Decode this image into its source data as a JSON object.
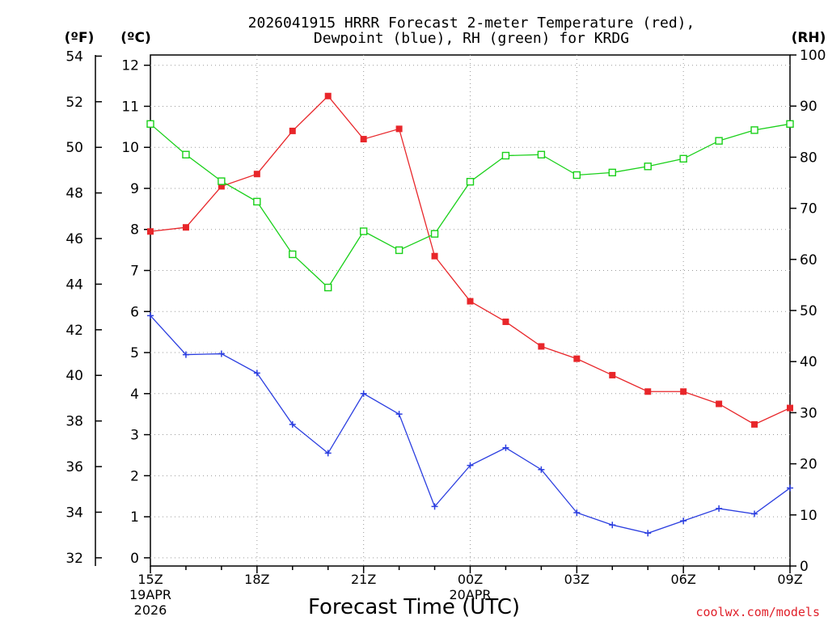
{
  "chart_data": {
    "type": "line",
    "title_line1": "2026041915 HRRR Forecast 2-meter Temperature (red),",
    "title_line2": "Dewpoint (blue), RH (green) for KRDG",
    "xlabel": "Forecast Time (UTC)",
    "left_outer_unit": "(ºF)",
    "left_inner_unit": "(ºC)",
    "right_unit": "(RH)",
    "watermark": "coolwx.com/models",
    "x_tick_labels": [
      "15Z",
      "18Z",
      "21Z",
      "00Z",
      "03Z",
      "06Z",
      "09Z"
    ],
    "x_date_labels": [
      {
        "day": "19APR",
        "year": "2026"
      },
      {
        "day": "20APR",
        "year": ""
      }
    ],
    "hours": [
      15,
      16,
      17,
      18,
      19,
      20,
      21,
      22,
      23,
      24,
      25,
      26,
      27,
      28,
      29,
      30,
      31,
      32,
      33
    ],
    "xlim": [
      15,
      33
    ],
    "celsius_ticks": [
      0,
      1,
      2,
      3,
      4,
      5,
      6,
      7,
      8,
      9,
      10,
      11,
      12
    ],
    "fahrenheit_ticks": [
      32,
      34,
      36,
      38,
      40,
      42,
      44,
      46,
      48,
      50,
      52,
      54
    ],
    "rh_ticks": [
      0,
      10,
      20,
      30,
      40,
      50,
      60,
      70,
      80,
      90,
      100
    ],
    "ylim_c": [
      -0.2,
      12.25
    ],
    "ylim_rh": [
      0,
      100
    ],
    "series": [
      {
        "name": "Temperature",
        "color": "#e8262a",
        "marker": "filled-square",
        "values": [
          7.95,
          8.05,
          9.05,
          9.35,
          10.4,
          11.25,
          10.2,
          10.45,
          7.35,
          6.25,
          5.75,
          5.15,
          4.85,
          4.45,
          4.05,
          4.05,
          3.75,
          3.25,
          3.65
        ]
      },
      {
        "name": "Dewpoint",
        "color": "#2b3ee0",
        "marker": "plus",
        "values": [
          5.9,
          4.95,
          4.97,
          4.5,
          3.25,
          2.55,
          4.0,
          3.5,
          1.25,
          2.25,
          2.68,
          2.15,
          1.1,
          0.8,
          0.6,
          0.9,
          1.2,
          1.07,
          1.7
        ]
      },
      {
        "name": "RH",
        "color": "#19d019",
        "marker": "open-square",
        "values": [
          86.5,
          80.5,
          75.3,
          71.3,
          61.0,
          54.5,
          65.5,
          61.8,
          65.0,
          75.2,
          80.3,
          80.5,
          76.5,
          77.0,
          78.2,
          79.7,
          83.2,
          85.3,
          86.5
        ]
      }
    ]
  }
}
